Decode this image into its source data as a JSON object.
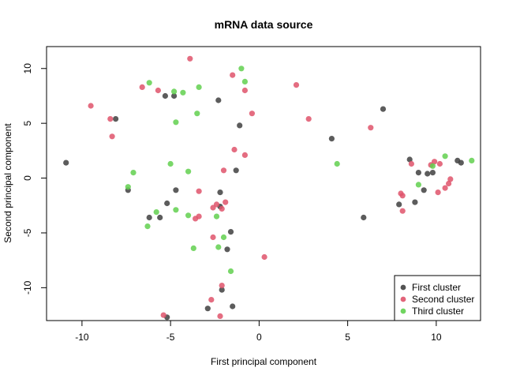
{
  "chart_data": {
    "type": "scatter",
    "title": "mRNA data source",
    "xlabel": "First principal component",
    "ylabel": "Second principal component",
    "xlim": [
      -12,
      12.5
    ],
    "ylim": [
      -13,
      12
    ],
    "xticks": [
      -10,
      -5,
      0,
      5,
      10
    ],
    "yticks": [
      -10,
      -5,
      0,
      5,
      10
    ],
    "grid": false,
    "legend_position": "bottom-right",
    "series": [
      {
        "name": "First cluster",
        "color": "#404040",
        "points": [
          [
            -10.9,
            1.4
          ],
          [
            -8.1,
            5.4
          ],
          [
            -7.4,
            -1.1
          ],
          [
            -6.2,
            -3.6
          ],
          [
            -5.6,
            -3.6
          ],
          [
            -5.3,
            7.5
          ],
          [
            -4.8,
            7.5
          ],
          [
            -4.7,
            -1.1
          ],
          [
            -5.2,
            -2.3
          ],
          [
            -2.3,
            7.1
          ],
          [
            -2.2,
            -1.3
          ],
          [
            -2.2,
            -2.6
          ],
          [
            -1.8,
            -6.5
          ],
          [
            -1.6,
            -4.9
          ],
          [
            -1.3,
            0.7
          ],
          [
            -1.1,
            4.8
          ],
          [
            -2.9,
            -11.9
          ],
          [
            -2.1,
            -10.2
          ],
          [
            -1.5,
            -11.7
          ],
          [
            -5.2,
            -12.7
          ],
          [
            4.1,
            3.6
          ],
          [
            5.9,
            -3.6
          ],
          [
            7.0,
            6.3
          ],
          [
            7.9,
            -2.4
          ],
          [
            8.5,
            1.7
          ],
          [
            8.8,
            -2.2
          ],
          [
            9.0,
            0.5
          ],
          [
            9.3,
            -1.1
          ],
          [
            9.5,
            0.4
          ],
          [
            9.8,
            0.5
          ],
          [
            11.2,
            1.6
          ],
          [
            11.4,
            1.4
          ]
        ]
      },
      {
        "name": "Second cluster",
        "color": "#df536b",
        "points": [
          [
            -9.5,
            6.6
          ],
          [
            -8.4,
            5.4
          ],
          [
            -8.3,
            3.8
          ],
          [
            -6.6,
            8.3
          ],
          [
            -5.7,
            8.0
          ],
          [
            -3.9,
            10.9
          ],
          [
            -1.5,
            9.4
          ],
          [
            -0.8,
            8.0
          ],
          [
            -0.4,
            5.9
          ],
          [
            -1.4,
            2.6
          ],
          [
            -0.8,
            2.1
          ],
          [
            -2.0,
            0.7
          ],
          [
            -3.4,
            -1.2
          ],
          [
            -3.6,
            -3.7
          ],
          [
            -3.4,
            -3.5
          ],
          [
            -2.6,
            -2.7
          ],
          [
            -2.4,
            -2.4
          ],
          [
            -2.1,
            -2.8
          ],
          [
            -1.9,
            -2.2
          ],
          [
            -2.6,
            -5.4
          ],
          [
            -2.7,
            -11.1
          ],
          [
            -2.1,
            -9.8
          ],
          [
            -2.2,
            -12.6
          ],
          [
            -5.4,
            -12.5
          ],
          [
            0.3,
            -7.2
          ],
          [
            2.1,
            8.5
          ],
          [
            2.8,
            5.4
          ],
          [
            6.3,
            4.6
          ],
          [
            8.0,
            -1.4
          ],
          [
            8.1,
            -1.6
          ],
          [
            8.1,
            -3.0
          ],
          [
            8.6,
            1.3
          ],
          [
            9.7,
            1.2
          ],
          [
            9.9,
            1.5
          ],
          [
            10.1,
            -1.3
          ],
          [
            10.2,
            1.3
          ],
          [
            10.5,
            -0.9
          ],
          [
            10.7,
            -0.5
          ],
          [
            10.8,
            -0.1
          ]
        ]
      },
      {
        "name": "Third cluster",
        "color": "#61d04f",
        "points": [
          [
            -6.2,
            8.7
          ],
          [
            -4.8,
            7.9
          ],
          [
            -4.3,
            7.8
          ],
          [
            -3.4,
            8.3
          ],
          [
            -3.5,
            5.9
          ],
          [
            -4.7,
            5.1
          ],
          [
            -1.0,
            10.0
          ],
          [
            -0.8,
            8.8
          ],
          [
            -7.1,
            0.5
          ],
          [
            -7.4,
            -0.8
          ],
          [
            -5.0,
            1.3
          ],
          [
            -4.0,
            0.6
          ],
          [
            -5.8,
            -3.1
          ],
          [
            -6.3,
            -4.4
          ],
          [
            -4.7,
            -2.9
          ],
          [
            -4.0,
            -3.4
          ],
          [
            -2.4,
            -3.5
          ],
          [
            -2.0,
            -5.4
          ],
          [
            -3.7,
            -6.4
          ],
          [
            -2.3,
            -6.3
          ],
          [
            -1.6,
            -8.5
          ],
          [
            4.4,
            1.3
          ],
          [
            9.0,
            -0.6
          ],
          [
            9.8,
            1.1
          ],
          [
            10.5,
            2.0
          ],
          [
            12.0,
            1.6
          ]
        ]
      }
    ]
  }
}
